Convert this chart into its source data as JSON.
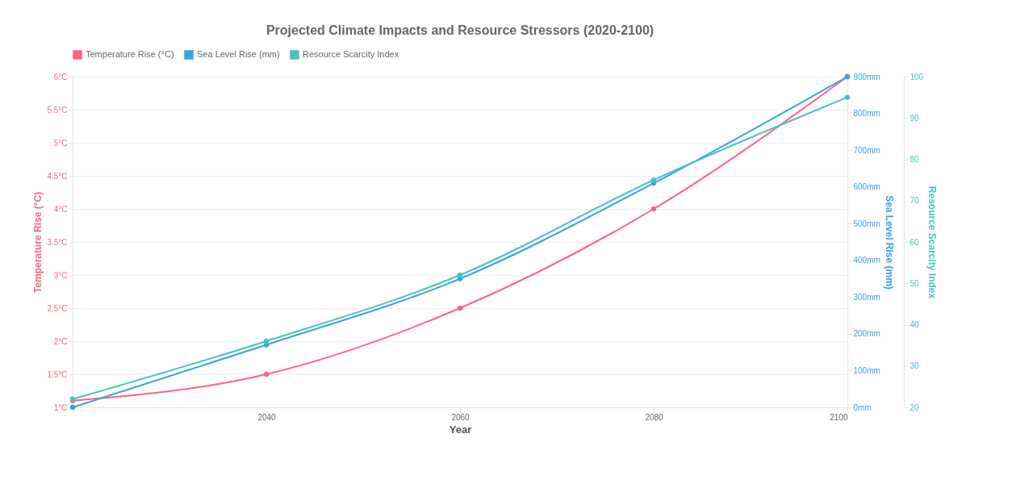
{
  "chart_data": {
    "type": "line",
    "title": "Projected Climate Impacts and Resource Stressors (2020-2100)",
    "xlabel": "Year",
    "ylabel": "Temperature Rise (°C)",
    "y2label": "Sea Level Rise (mm)",
    "y3label": "Resource Scarcity Index",
    "x": [
      2020,
      2040,
      2060,
      2080,
      2100
    ],
    "xlim": [
      2020,
      2100
    ],
    "xticks": [
      {
        "value": 2020,
        "label": null
      },
      2040,
      2060,
      2080,
      2100
    ],
    "ylim": [
      1,
      6
    ],
    "yticks": [
      {
        "value": 1,
        "label": "1°C"
      },
      {
        "value": 1.5,
        "label": "1.5°C"
      },
      {
        "value": 2,
        "label": "2°C"
      },
      {
        "value": 2.5,
        "label": "2.5°C"
      },
      {
        "value": 3,
        "label": "3°C"
      },
      {
        "value": 3.5,
        "label": "3.5°C"
      },
      {
        "value": 4,
        "label": "4°C"
      },
      {
        "value": 4.5,
        "label": "4.5°C"
      },
      {
        "value": 5,
        "label": "5°C"
      },
      {
        "value": 5.5,
        "label": "5.5°C"
      },
      {
        "value": 6,
        "label": "6°C"
      }
    ],
    "y2lim": [
      0,
      900
    ],
    "y2ticks": [
      {
        "value": 0,
        "label": "0mm"
      },
      {
        "value": 100,
        "label": "100mm"
      },
      {
        "value": 200,
        "label": "200mm"
      },
      {
        "value": 300,
        "label": "300mm"
      },
      {
        "value": 400,
        "label": "400mm"
      },
      {
        "value": 500,
        "label": "500mm"
      },
      {
        "value": 600,
        "label": "600mm"
      },
      {
        "value": 700,
        "label": "700mm"
      },
      {
        "value": 800,
        "label": "800mm"
      },
      {
        "value": 900,
        "label": "900mm"
      }
    ],
    "y3lim": [
      20,
      100
    ],
    "y3ticks": [
      20,
      30,
      40,
      50,
      60,
      70,
      80,
      90,
      100
    ],
    "series": [
      {
        "name": "Temperature Rise (°C)",
        "color": "#ff6384",
        "values": [
          1.1,
          1.5,
          2.5,
          4.0,
          6.0
        ]
      },
      {
        "name": "Sea Level Rise (mm)",
        "color": "#36a2eb",
        "axis": "y2",
        "values": [
          0,
          170,
          350,
          610,
          900
        ]
      },
      {
        "name": "Resource Scarcity Index",
        "color": "#4bc0c0",
        "axis": "y3",
        "values": [
          22,
          36,
          52,
          75,
          95
        ]
      }
    ],
    "grid": "y",
    "legend": "top",
    "marker": "circle",
    "line_style": "solid"
  }
}
